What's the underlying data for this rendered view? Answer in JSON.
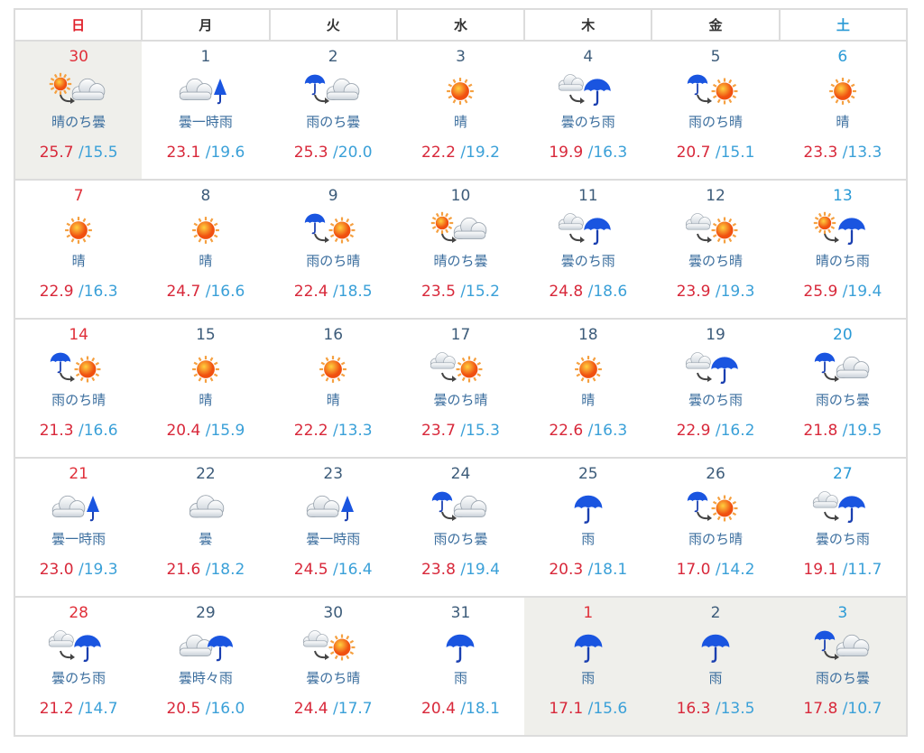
{
  "weekdays": [
    "日",
    "月",
    "火",
    "水",
    "木",
    "金",
    "土"
  ],
  "colors": {
    "sunday": "#e0202a",
    "saturday": "#2a9ad6",
    "weekday": "#3d5c7a",
    "high": "#d8283a",
    "low": "#3aa0d8",
    "out_of_month_bg": "#efefeb"
  },
  "weeks": [
    [
      {
        "day": "30",
        "cond": "晴のち曇",
        "icon": "s>c",
        "hi": "25.7",
        "lo": "15.5",
        "out": true
      },
      {
        "day": "1",
        "cond": "曇一時雨",
        "icon": "c|u",
        "hi": "23.1",
        "lo": "19.6"
      },
      {
        "day": "2",
        "cond": "雨のち曇",
        "icon": "r>c",
        "hi": "25.3",
        "lo": "20.0"
      },
      {
        "day": "3",
        "cond": "晴",
        "icon": "s",
        "hi": "22.2",
        "lo": "19.2"
      },
      {
        "day": "4",
        "cond": "曇のち雨",
        "icon": "c>r",
        "hi": "19.9",
        "lo": "16.3"
      },
      {
        "day": "5",
        "cond": "雨のち晴",
        "icon": "r>s",
        "hi": "20.7",
        "lo": "15.1"
      },
      {
        "day": "6",
        "cond": "晴",
        "icon": "s",
        "hi": "23.3",
        "lo": "13.3"
      }
    ],
    [
      {
        "day": "7",
        "cond": "晴",
        "icon": "s",
        "hi": "22.9",
        "lo": "16.3"
      },
      {
        "day": "8",
        "cond": "晴",
        "icon": "s",
        "hi": "24.7",
        "lo": "16.6"
      },
      {
        "day": "9",
        "cond": "雨のち晴",
        "icon": "r>s",
        "hi": "22.4",
        "lo": "18.5"
      },
      {
        "day": "10",
        "cond": "晴のち曇",
        "icon": "s>c",
        "hi": "23.5",
        "lo": "15.2"
      },
      {
        "day": "11",
        "cond": "曇のち雨",
        "icon": "c>r",
        "hi": "24.8",
        "lo": "18.6"
      },
      {
        "day": "12",
        "cond": "曇のち晴",
        "icon": "c>s",
        "hi": "23.9",
        "lo": "19.3"
      },
      {
        "day": "13",
        "cond": "晴のち雨",
        "icon": "s>r",
        "hi": "25.9",
        "lo": "19.4"
      }
    ],
    [
      {
        "day": "14",
        "cond": "雨のち晴",
        "icon": "r>s",
        "hi": "21.3",
        "lo": "16.6"
      },
      {
        "day": "15",
        "cond": "晴",
        "icon": "s",
        "hi": "20.4",
        "lo": "15.9"
      },
      {
        "day": "16",
        "cond": "晴",
        "icon": "s",
        "hi": "22.2",
        "lo": "13.3"
      },
      {
        "day": "17",
        "cond": "曇のち晴",
        "icon": "c>s",
        "hi": "23.7",
        "lo": "15.3"
      },
      {
        "day": "18",
        "cond": "晴",
        "icon": "s",
        "hi": "22.6",
        "lo": "16.3"
      },
      {
        "day": "19",
        "cond": "曇のち雨",
        "icon": "c>r",
        "hi": "22.9",
        "lo": "16.2"
      },
      {
        "day": "20",
        "cond": "雨のち曇",
        "icon": "r>c",
        "hi": "21.8",
        "lo": "19.5"
      }
    ],
    [
      {
        "day": "21",
        "cond": "曇一時雨",
        "icon": "c|u",
        "hi": "23.0",
        "lo": "19.3"
      },
      {
        "day": "22",
        "cond": "曇",
        "icon": "c",
        "hi": "21.6",
        "lo": "18.2"
      },
      {
        "day": "23",
        "cond": "曇一時雨",
        "icon": "c|u",
        "hi": "24.5",
        "lo": "16.4"
      },
      {
        "day": "24",
        "cond": "雨のち曇",
        "icon": "r>c",
        "hi": "23.8",
        "lo": "19.4"
      },
      {
        "day": "25",
        "cond": "雨",
        "icon": "r",
        "hi": "20.3",
        "lo": "18.1"
      },
      {
        "day": "26",
        "cond": "雨のち晴",
        "icon": "r>s",
        "hi": "17.0",
        "lo": "14.2"
      },
      {
        "day": "27",
        "cond": "曇のち雨",
        "icon": "c>r",
        "hi": "19.1",
        "lo": "11.7"
      }
    ],
    [
      {
        "day": "28",
        "cond": "曇のち雨",
        "icon": "c>r",
        "hi": "21.2",
        "lo": "14.7"
      },
      {
        "day": "29",
        "cond": "曇時々雨",
        "icon": "c|r",
        "hi": "20.5",
        "lo": "16.0"
      },
      {
        "day": "30",
        "cond": "曇のち晴",
        "icon": "c>s",
        "hi": "24.4",
        "lo": "17.7"
      },
      {
        "day": "31",
        "cond": "雨",
        "icon": "r",
        "hi": "20.4",
        "lo": "18.1"
      },
      {
        "day": "1",
        "cond": "雨",
        "icon": "r",
        "hi": "17.1",
        "lo": "15.6",
        "out": true,
        "holiday": true
      },
      {
        "day": "2",
        "cond": "雨",
        "icon": "r",
        "hi": "16.3",
        "lo": "13.5",
        "out": true
      },
      {
        "day": "3",
        "cond": "雨のち曇",
        "icon": "r>c",
        "hi": "17.8",
        "lo": "10.7",
        "out": true
      }
    ]
  ]
}
